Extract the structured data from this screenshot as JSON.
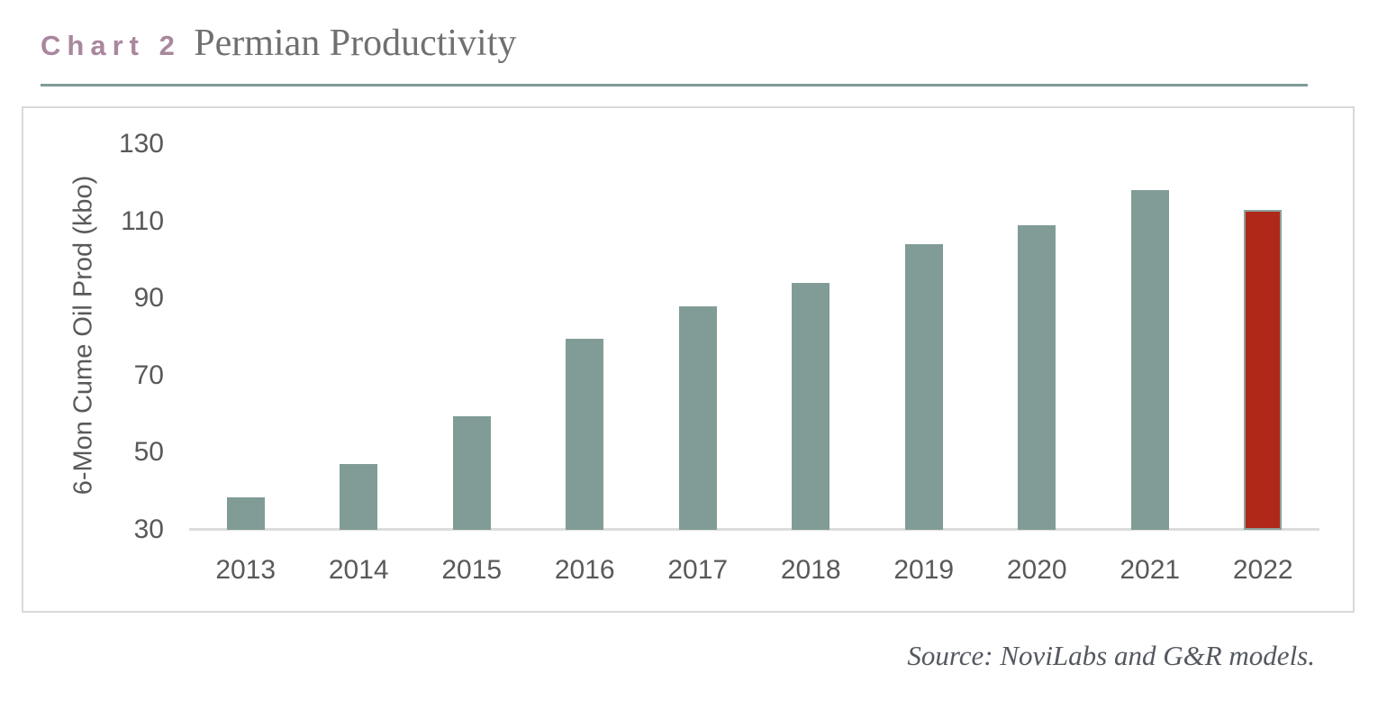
{
  "header": {
    "chart_label": "Chart 2",
    "title": "Permian Productivity"
  },
  "source": "Source: NoviLabs and G&R models.",
  "colors": {
    "accent_mauve": "#A9879E",
    "title_gray": "#707070",
    "rule_teal": "#7E9B98",
    "bar_default": "#819C96",
    "bar_highlight": "#B02818",
    "bar_highlight_border": "#8AA09B",
    "axis_text": "#595959",
    "frame_border": "#D9D9D9",
    "baseline_gray": "#DCDCDC",
    "source_text": "#545860"
  },
  "chart_data": {
    "type": "bar",
    "categories": [
      "2013",
      "2014",
      "2015",
      "2016",
      "2017",
      "2018",
      "2019",
      "2020",
      "2021",
      "2022"
    ],
    "values": [
      38.5,
      47,
      59.5,
      79.5,
      88,
      94,
      104,
      109,
      118,
      113
    ],
    "title": "Permian Productivity",
    "xlabel": "",
    "ylabel": "6-Mon Cume Oil Prod (kbo)",
    "ylim": [
      30,
      130
    ],
    "yticks": [
      30,
      50,
      70,
      90,
      110,
      130
    ],
    "highlight_category": "2022",
    "grid": false,
    "legend": false
  }
}
